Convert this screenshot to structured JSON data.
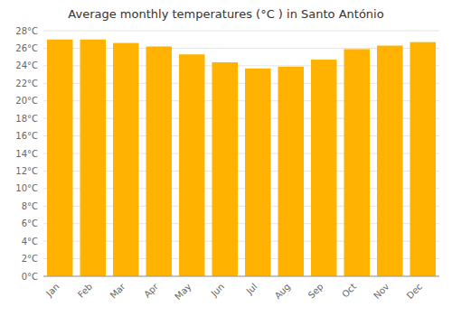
{
  "chart_data": {
    "type": "bar",
    "title": "Average monthly temperatures (°C ) in Santo António",
    "categories": [
      "Jan",
      "Feb",
      "Mar",
      "Apr",
      "May",
      "Jun",
      "Jul",
      "Aug",
      "Sep",
      "Oct",
      "Nov",
      "Dec"
    ],
    "values": [
      27.0,
      27.0,
      26.6,
      26.2,
      25.3,
      24.4,
      23.7,
      23.9,
      24.7,
      25.9,
      26.3,
      26.7
    ],
    "color": "#FFB300",
    "ylim": [
      0,
      28
    ],
    "yticks": [
      {
        "value": 0,
        "label": "0°C"
      },
      {
        "value": 2,
        "label": "2°C"
      },
      {
        "value": 4,
        "label": "4°C"
      },
      {
        "value": 6,
        "label": "6°C"
      },
      {
        "value": 8,
        "label": "8°C"
      },
      {
        "value": 10,
        "label": "10°C"
      },
      {
        "value": 12,
        "label": "12°C"
      },
      {
        "value": 14,
        "label": "14°C"
      },
      {
        "value": 16,
        "label": "16°C"
      },
      {
        "value": 18,
        "label": "18°C"
      },
      {
        "value": 20,
        "label": "20°C"
      },
      {
        "value": 22,
        "label": "22°C"
      },
      {
        "value": 24,
        "label": "24°C"
      },
      {
        "value": 26,
        "label": "26°C"
      },
      {
        "value": 28,
        "label": "28°C"
      }
    ],
    "grid": true
  }
}
